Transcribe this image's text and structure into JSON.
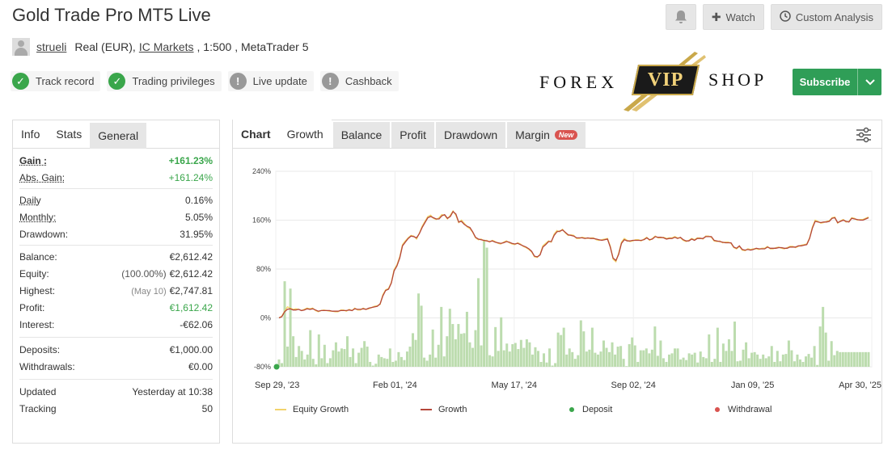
{
  "header": {
    "title": "Gold Trade Pro MT5 Live",
    "watch_label": "Watch",
    "custom_analysis_label": "Custom Analysis"
  },
  "account": {
    "username": "strueli",
    "type": "Real (EUR),",
    "broker": "IC Markets",
    "leverage_platform": ", 1:500 , MetaTrader 5"
  },
  "badges": [
    {
      "label": "Track record",
      "status": "verified"
    },
    {
      "label": "Trading privileges",
      "status": "verified"
    },
    {
      "label": "Live update",
      "status": "unverified"
    },
    {
      "label": "Cashback",
      "status": "unverified"
    }
  ],
  "logo": {
    "left": "FOREX",
    "middle": "VIP",
    "right": "SHOP"
  },
  "subscribe_label": "Subscribe",
  "left_tabs": [
    "Info",
    "Stats",
    "General"
  ],
  "stats": {
    "gain": {
      "label": "Gain :",
      "value": "+161.23%"
    },
    "abs_gain": {
      "label": "Abs. Gain:",
      "value": "+161.24%"
    },
    "daily": {
      "label": "Daily",
      "value": "0.16%"
    },
    "monthly": {
      "label": "Monthly:",
      "value": "5.05%"
    },
    "drawdown": {
      "label": "Drawdown:",
      "value": "31.95%"
    },
    "balance": {
      "label": "Balance:",
      "value": "€2,612.42"
    },
    "equity": {
      "label": "Equity:",
      "pct": "(100.00%)",
      "value": "€2,612.42"
    },
    "highest": {
      "label": "Highest:",
      "date": "(May 10)",
      "value": "€2,747.81"
    },
    "profit": {
      "label": "Profit:",
      "value": "€1,612.42"
    },
    "interest": {
      "label": "Interest:",
      "value": "-€62.06"
    },
    "deposits": {
      "label": "Deposits:",
      "value": "€1,000.00"
    },
    "withdrawals": {
      "label": "Withdrawals:",
      "value": "€0.00"
    },
    "updated": {
      "label": "Updated",
      "value": "Yesterday at 10:38"
    },
    "tracking": {
      "label": "Tracking",
      "value": "50"
    }
  },
  "chart_tabs": {
    "chart": "Chart",
    "items": [
      "Growth",
      "Balance",
      "Profit",
      "Drawdown",
      "Margin"
    ],
    "new_badge": "New"
  },
  "colors": {
    "equity_growth": "#f2d36b",
    "growth": "#b5473a",
    "deposit": "#3aa64b",
    "withdrawal": "#d9534f",
    "bars": "#bcdcae",
    "subscribe": "#2f9e57"
  },
  "chart_data": {
    "type": "line",
    "ylim": [
      -80,
      240
    ],
    "yticks": [
      "240%",
      "160%",
      "80%",
      "0%",
      "-80%"
    ],
    "xticks": [
      "Sep 29, '23",
      "Feb 01, '24",
      "May 17, '24",
      "Sep 02, '24",
      "Jan 09, '25",
      "Apr 30, '25"
    ],
    "legend": [
      {
        "name": "Equity Growth",
        "kind": "line"
      },
      {
        "name": "Growth",
        "kind": "line"
      },
      {
        "name": "Deposit",
        "kind": "dot"
      },
      {
        "name": "Withdrawal",
        "kind": "dot"
      }
    ],
    "growth": [
      0,
      2,
      10,
      14,
      15,
      13,
      13,
      14,
      12,
      13,
      15,
      14,
      15,
      13,
      11,
      12,
      12,
      12,
      12,
      11,
      11,
      11,
      12,
      12,
      12,
      13,
      12,
      15,
      14,
      14,
      15,
      14,
      16,
      17,
      18,
      19,
      23,
      36,
      45,
      47,
      57,
      77,
      85,
      98,
      118,
      124,
      130,
      134,
      133,
      131,
      138,
      148,
      156,
      164,
      166,
      164,
      162,
      162,
      167,
      169,
      163,
      166,
      174,
      170,
      157,
      158,
      153,
      150,
      148,
      141,
      132,
      129,
      128,
      127,
      126,
      125,
      126,
      124,
      123,
      122,
      123,
      125,
      124,
      122,
      121,
      122,
      120,
      118,
      116,
      113,
      109,
      101,
      100,
      103,
      116,
      120,
      125,
      125,
      135,
      141,
      142,
      144,
      140,
      136,
      135,
      134,
      131,
      131,
      131,
      130,
      131,
      130,
      130,
      129,
      128,
      127,
      128,
      129,
      116,
      98,
      94,
      104,
      122,
      128,
      126,
      126,
      127,
      127,
      127,
      127,
      128,
      131,
      128,
      129,
      133,
      132,
      132,
      131,
      129,
      130,
      130,
      132,
      130,
      132,
      128,
      126,
      126,
      129,
      127,
      130,
      130,
      130,
      133,
      133,
      133,
      127,
      126,
      125,
      124,
      123,
      123,
      123,
      116,
      114,
      118,
      112,
      111,
      112,
      111,
      112,
      114,
      113,
      113,
      113,
      116,
      114,
      114,
      114,
      115,
      115,
      114,
      114,
      116,
      116,
      116,
      118,
      118,
      119,
      120,
      130,
      147,
      158,
      157,
      156,
      157,
      157,
      158,
      163,
      164,
      156,
      158,
      160,
      158,
      157,
      163,
      162,
      161,
      160,
      160,
      162,
      164
    ],
    "equity_growth": [
      0,
      3,
      11,
      18,
      16,
      14,
      15,
      14,
      12,
      14,
      16,
      15,
      16,
      12,
      10,
      12,
      13,
      12,
      11,
      11,
      10,
      10,
      13,
      13,
      11,
      14,
      12,
      16,
      13,
      13,
      16,
      14,
      15,
      17,
      19,
      20,
      22,
      38,
      46,
      48,
      58,
      79,
      87,
      100,
      120,
      126,
      131,
      135,
      134,
      129,
      139,
      150,
      158,
      166,
      168,
      163,
      161,
      164,
      169,
      168,
      162,
      168,
      175,
      168,
      156,
      160,
      155,
      149,
      146,
      140,
      131,
      128,
      129,
      126,
      127,
      124,
      127,
      125,
      122,
      121,
      124,
      126,
      123,
      121,
      120,
      123,
      121,
      117,
      115,
      112,
      108,
      100,
      99,
      104,
      118,
      122,
      126,
      124,
      137,
      143,
      141,
      145,
      139,
      135,
      136,
      135,
      130,
      130,
      132,
      131,
      130,
      131,
      131,
      128,
      127,
      128,
      129,
      130,
      118,
      96,
      92,
      106,
      124,
      130,
      127,
      125,
      126,
      128,
      128,
      126,
      129,
      132,
      127,
      130,
      134,
      131,
      131,
      132,
      130,
      131,
      131,
      133,
      131,
      131,
      127,
      125,
      127,
      130,
      128,
      131,
      131,
      129,
      134,
      134,
      132,
      126,
      125,
      126,
      123,
      124,
      124,
      122,
      115,
      113,
      117,
      111,
      110,
      113,
      112,
      113,
      113,
      112,
      114,
      114,
      117,
      113,
      113,
      115,
      116,
      114,
      113,
      115,
      117,
      117,
      115,
      117,
      119,
      120,
      121,
      131,
      149,
      160,
      158,
      155,
      156,
      158,
      159,
      164,
      165,
      155,
      159,
      161,
      157,
      158,
      164,
      163,
      160,
      161,
      161,
      163,
      165
    ],
    "bars": [
      12,
      6,
      140,
      33,
      128,
      50,
      16,
      34,
      26,
      12,
      20,
      60,
      13,
      4,
      53,
      14,
      36,
      6,
      14,
      27,
      40,
      25,
      30,
      29,
      50,
      16,
      30,
      6,
      23,
      31,
      42,
      33,
      8,
      2,
      5,
      20,
      16,
      14,
      13,
      30,
      8,
      10,
      24,
      16,
      11,
      25,
      33,
      55,
      44,
      120,
      100,
      15,
      10,
      20,
      61,
      15,
      36,
      98,
      17,
      50,
      95,
      70,
      45,
      70,
      54,
      55,
      90,
      40,
      31,
      60,
      145,
      35,
      80,
      27,
      19,
      17,
      65,
      26,
      81,
      27,
      38,
      25,
      37,
      39,
      29,
      44,
      31,
      45,
      40,
      20,
      32,
      26,
      8,
      22,
      7,
      30,
      2,
      6,
      56,
      52,
      64,
      20,
      30,
      24,
      13,
      19,
      76,
      58,
      25,
      28,
      64,
      23,
      20,
      25,
      43,
      31,
      24,
      40,
      20,
      33,
      34,
      13,
      1,
      37,
      48,
      35,
      8,
      27,
      27,
      30,
      22,
      28,
      66,
      18,
      43,
      14,
      8,
      20,
      22,
      30,
      30,
      12,
      15,
      11,
      22,
      20,
      23,
      7,
      25,
      16,
      14,
      53,
      8,
      13,
      64,
      8,
      38,
      26,
      45,
      26,
      74,
      9,
      10,
      28,
      40,
      14,
      23,
      24,
      20,
      13,
      20,
      14,
      17,
      34,
      8,
      26,
      9,
      20,
      21,
      43,
      27,
      9,
      20,
      12,
      8,
      17,
      21,
      15,
      34,
      3,
      66,
      98,
      56,
      10,
      42,
      19,
      26,
      24,
      24,
      24,
      24,
      24,
      24,
      24,
      24,
      24,
      24,
      24
    ],
    "bar_highlights": {
      "72": 208,
      "73": 195
    }
  }
}
